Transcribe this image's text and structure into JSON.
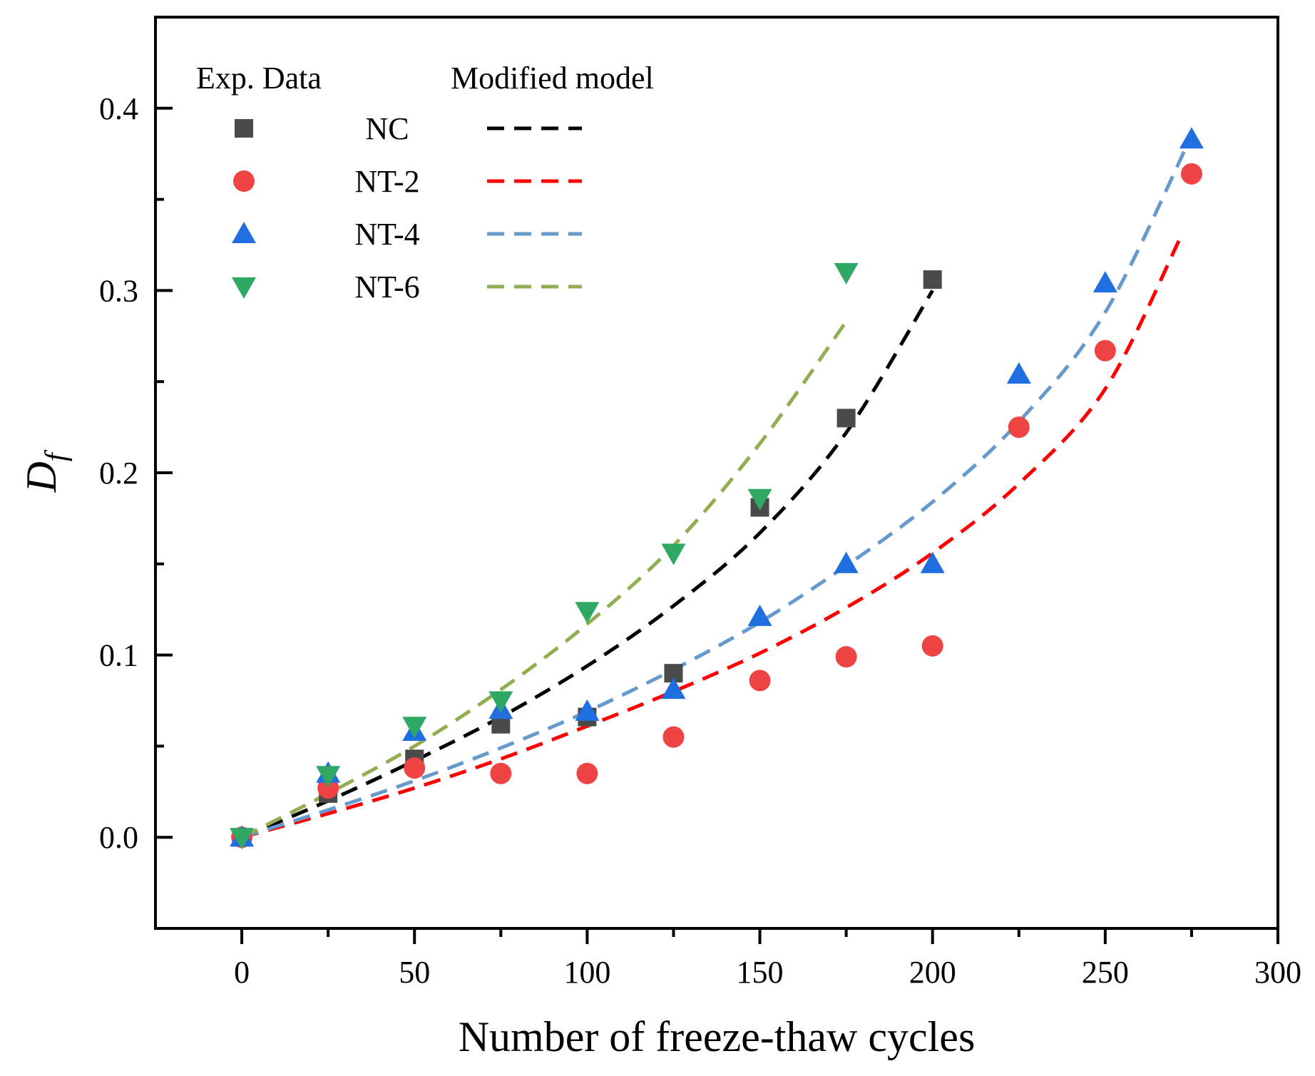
{
  "chart_data": {
    "type": "scatter",
    "title": "",
    "xlabel": "Number of freeze-thaw cycles",
    "ylabel": "D",
    "ylabel_subscript": "f",
    "xlim": [
      -25,
      300
    ],
    "ylim": [
      -0.05,
      0.45
    ],
    "xticks": [
      0,
      50,
      100,
      150,
      200,
      250,
      300
    ],
    "xtick_labels": [
      "0",
      "50",
      "100",
      "150",
      "200",
      "250",
      "300"
    ],
    "yticks": [
      0.0,
      0.1,
      0.2,
      0.3,
      0.4
    ],
    "ytick_labels": [
      "0.0",
      "0.1",
      "0.2",
      "0.3",
      "0.4"
    ],
    "grid": false,
    "legend": {
      "position": "top-left",
      "exp_header": "Exp. Data",
      "model_header": "Modified model"
    },
    "series": [
      {
        "name": "NC",
        "marker": "square",
        "color": "#4a4a4a",
        "line_color": "#000000",
        "x": [
          0,
          25,
          50,
          75,
          100,
          125,
          150,
          175,
          200
        ],
        "values": [
          0.0,
          0.024,
          0.043,
          0.062,
          0.066,
          0.09,
          0.181,
          0.23,
          0.306
        ],
        "model_x": [
          0,
          25,
          50,
          75,
          100,
          125,
          150,
          175,
          200
        ],
        "model_values": [
          0.0,
          0.02,
          0.042,
          0.066,
          0.094,
          0.127,
          0.167,
          0.222,
          0.3
        ]
      },
      {
        "name": "NT-2",
        "marker": "circle",
        "color": "#ee4444",
        "line_color": "#ff0000",
        "x": [
          0,
          25,
          50,
          75,
          100,
          125,
          150,
          175,
          200,
          225,
          250,
          275
        ],
        "values": [
          0.0,
          0.027,
          0.038,
          0.035,
          0.035,
          0.055,
          0.086,
          0.099,
          0.105,
          0.225,
          0.267,
          0.364
        ],
        "model_x": [
          0,
          25,
          50,
          75,
          100,
          125,
          150,
          175,
          200,
          225,
          250,
          272
        ],
        "model_values": [
          0.0,
          0.013,
          0.027,
          0.043,
          0.061,
          0.08,
          0.101,
          0.126,
          0.156,
          0.194,
          0.246,
          0.33
        ]
      },
      {
        "name": "NT-4",
        "marker": "triangle-up",
        "color": "#1f6fe0",
        "line_color": "#6699cc",
        "x": [
          0,
          25,
          50,
          75,
          100,
          125,
          150,
          175,
          200,
          225,
          250,
          275
        ],
        "values": [
          0.0,
          0.035,
          0.058,
          0.07,
          0.069,
          0.081,
          0.121,
          0.15,
          0.15,
          0.254,
          0.304,
          0.383
        ],
        "model_x": [
          0,
          25,
          50,
          75,
          100,
          125,
          150,
          175,
          200,
          225,
          250,
          275
        ],
        "model_values": [
          0.0,
          0.015,
          0.031,
          0.049,
          0.069,
          0.092,
          0.118,
          0.149,
          0.184,
          0.228,
          0.288,
          0.385
        ]
      },
      {
        "name": "NT-6",
        "marker": "triangle-down",
        "color": "#2ea862",
        "line_color": "#92ae52",
        "x": [
          0,
          25,
          50,
          75,
          100,
          125,
          150,
          175
        ],
        "values": [
          0.0,
          0.034,
          0.061,
          0.075,
          0.124,
          0.156,
          0.186,
          0.31
        ],
        "model_x": [
          0,
          25,
          50,
          75,
          100,
          125,
          150,
          175
        ],
        "model_values": [
          0.0,
          0.024,
          0.05,
          0.081,
          0.117,
          0.16,
          0.216,
          0.283
        ]
      }
    ]
  }
}
